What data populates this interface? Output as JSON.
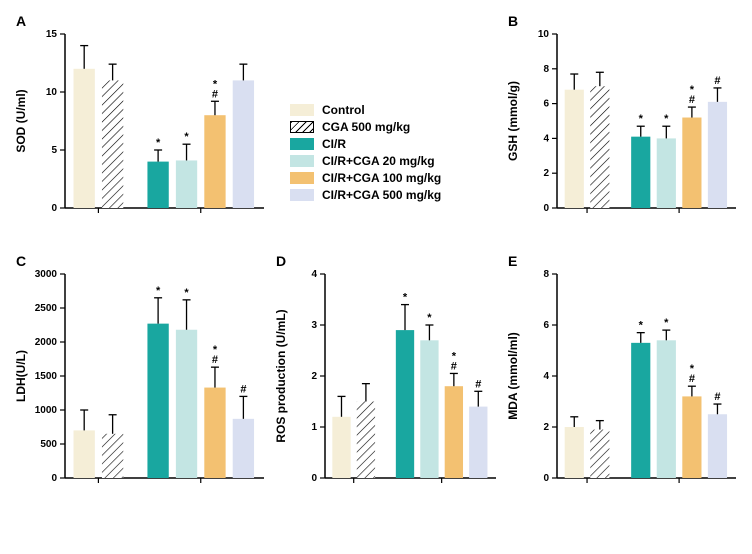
{
  "colors": {
    "control": "#f5eed7",
    "cga500": "#ffffff",
    "cir": "#19a7a0",
    "cir20": "#c3e5e3",
    "cir100": "#f3c171",
    "cir500": "#d9dff1",
    "axis": "#000000"
  },
  "legend": [
    {
      "label": "Control",
      "fill": "control",
      "hatch": false
    },
    {
      "label": "CGA 500 mg/kg",
      "fill": "cga500",
      "hatch": true
    },
    {
      "label": "CI/R",
      "fill": "cir",
      "hatch": false
    },
    {
      "label": "CI/R+CGA 20 mg/kg",
      "fill": "cir20",
      "hatch": false
    },
    {
      "label": "CI/R+CGA 100 mg/kg",
      "fill": "cir100",
      "hatch": false
    },
    {
      "label": "CI/R+CGA 500 mg/kg",
      "fill": "cir500",
      "hatch": false
    }
  ],
  "panels": {
    "A": {
      "ylabel": "SOD (U/ml)",
      "ylim": [
        0,
        15
      ],
      "ystep": 5,
      "bars": [
        {
          "g": "control",
          "val": 12.0,
          "err": 2.0,
          "mark": ""
        },
        {
          "g": "cga500",
          "val": 11.0,
          "err": 1.4,
          "mark": ""
        },
        {
          "g": "cir",
          "val": 4.0,
          "err": 1.0,
          "mark": "*"
        },
        {
          "g": "cir20",
          "val": 4.1,
          "err": 1.4,
          "mark": "*"
        },
        {
          "g": "cir100",
          "val": 8.0,
          "err": 1.2,
          "mark": "*#"
        },
        {
          "g": "cir500",
          "val": 11.0,
          "err": 1.4,
          "mark": ""
        }
      ]
    },
    "B": {
      "ylabel": "GSH (mmol/g)",
      "ylim": [
        0,
        10
      ],
      "ystep": 2,
      "bars": [
        {
          "g": "control",
          "val": 6.8,
          "err": 0.9,
          "mark": ""
        },
        {
          "g": "cga500",
          "val": 7.0,
          "err": 0.8,
          "mark": ""
        },
        {
          "g": "cir",
          "val": 4.1,
          "err": 0.6,
          "mark": "*"
        },
        {
          "g": "cir20",
          "val": 4.0,
          "err": 0.7,
          "mark": "*"
        },
        {
          "g": "cir100",
          "val": 5.2,
          "err": 0.6,
          "mark": "*#"
        },
        {
          "g": "cir500",
          "val": 6.1,
          "err": 0.8,
          "mark": "#"
        }
      ]
    },
    "C": {
      "ylabel": "LDH(U/L)",
      "ylim": [
        0,
        3000
      ],
      "ystep": 500,
      "bars": [
        {
          "g": "control",
          "val": 700,
          "err": 300,
          "mark": ""
        },
        {
          "g": "cga500",
          "val": 650,
          "err": 280,
          "mark": ""
        },
        {
          "g": "cir",
          "val": 2270,
          "err": 380,
          "mark": "*"
        },
        {
          "g": "cir20",
          "val": 2180,
          "err": 440,
          "mark": "*"
        },
        {
          "g": "cir100",
          "val": 1330,
          "err": 300,
          "mark": "*#"
        },
        {
          "g": "cir500",
          "val": 870,
          "err": 330,
          "mark": "#"
        }
      ]
    },
    "D": {
      "ylabel": "ROS production (U/mL)",
      "ylim": [
        0,
        4
      ],
      "ystep": 1,
      "bars": [
        {
          "g": "control",
          "val": 1.2,
          "err": 0.4,
          "mark": ""
        },
        {
          "g": "cga500",
          "val": 1.5,
          "err": 0.35,
          "mark": ""
        },
        {
          "g": "cir",
          "val": 2.9,
          "err": 0.5,
          "mark": "*"
        },
        {
          "g": "cir20",
          "val": 2.7,
          "err": 0.3,
          "mark": "*"
        },
        {
          "g": "cir100",
          "val": 1.8,
          "err": 0.25,
          "mark": "*#"
        },
        {
          "g": "cir500",
          "val": 1.4,
          "err": 0.3,
          "mark": "#"
        }
      ]
    },
    "E": {
      "ylabel": "MDA (mmol/ml)",
      "ylim": [
        0,
        8
      ],
      "ystep": 2,
      "bars": [
        {
          "g": "control",
          "val": 2.0,
          "err": 0.4,
          "mark": ""
        },
        {
          "g": "cga500",
          "val": 1.9,
          "err": 0.35,
          "mark": ""
        },
        {
          "g": "cir",
          "val": 5.3,
          "err": 0.4,
          "mark": "*"
        },
        {
          "g": "cir20",
          "val": 5.4,
          "err": 0.4,
          "mark": "*"
        },
        {
          "g": "cir100",
          "val": 3.2,
          "err": 0.4,
          "mark": "*#"
        },
        {
          "g": "cir500",
          "val": 2.5,
          "err": 0.4,
          "mark": "#"
        }
      ]
    }
  },
  "bar_width": 0.75,
  "group_gap_after": 2,
  "annotation_fontsize": 11
}
